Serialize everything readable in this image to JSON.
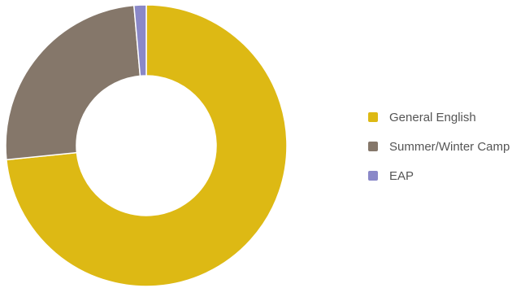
{
  "chart_data": {
    "type": "pie",
    "donut": true,
    "legend_position": "right",
    "title": "",
    "slices": [
      {
        "label": "General English",
        "value": 73.4,
        "color": "#DDB914"
      },
      {
        "label": "Summer/Winter Camp",
        "value": 25.2,
        "color": "#85776A"
      },
      {
        "label": "EAP",
        "value": 1.4,
        "color": "#8A88C8"
      }
    ]
  }
}
